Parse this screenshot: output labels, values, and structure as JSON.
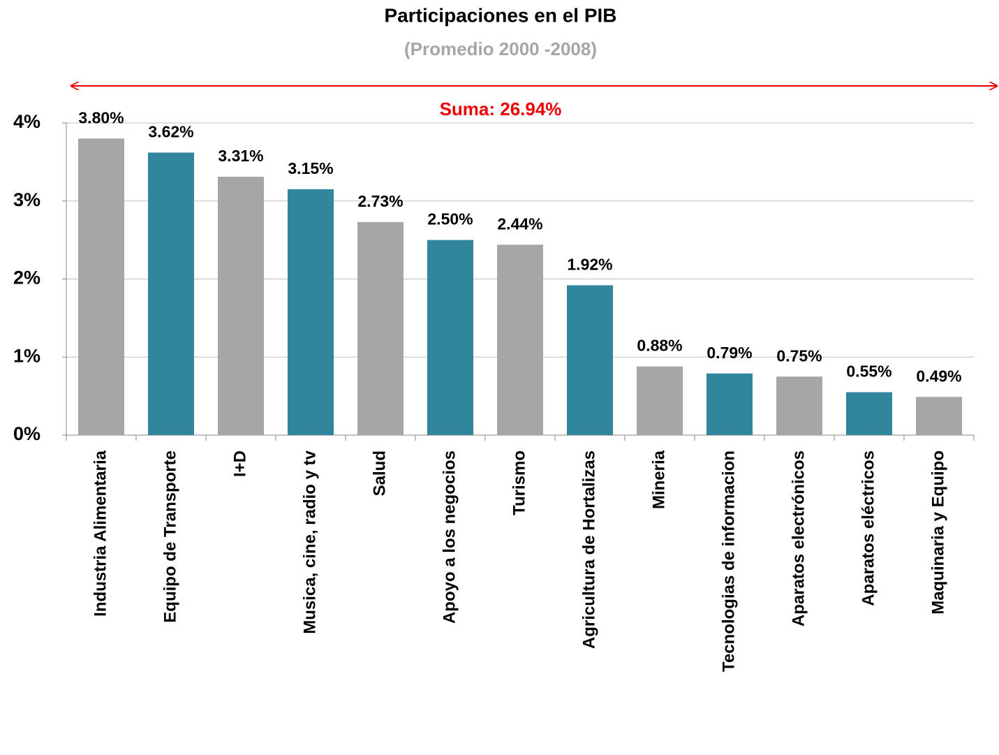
{
  "chart_data": {
    "type": "bar",
    "title": "Participaciones en el PIB",
    "subtitle": "(Promedio 2000 -2008)",
    "annotation": "Suma: 26.94%",
    "categories": [
      "Industria Alimentaria",
      "Equipo de Transporte",
      "I+D",
      "Musica, cine, radio y tv",
      "Salud",
      "Apoyo a los negocios",
      "Turismo",
      "Agricultura de Hortalizas",
      "Mineria",
      "Tecnologias de informacion",
      "Aparatos electrónicos",
      "Aparatos eléctricos",
      "Maquinaria y Equipo"
    ],
    "values": [
      3.8,
      3.62,
      3.31,
      3.15,
      2.73,
      2.5,
      2.44,
      1.92,
      0.88,
      0.79,
      0.75,
      0.55,
      0.49
    ],
    "value_labels": [
      "3.80%",
      "3.62%",
      "3.31%",
      "3.15%",
      "2.73%",
      "2.50%",
      "2.44%",
      "1.92%",
      "0.88%",
      "0.79%",
      "0.75%",
      "0.55%",
      "0.49%"
    ],
    "colors": [
      "#a6a6a6",
      "#31859c",
      "#a6a6a6",
      "#31859c",
      "#a6a6a6",
      "#31859c",
      "#a6a6a6",
      "#31859c",
      "#a6a6a6",
      "#31859c",
      "#a6a6a6",
      "#31859c",
      "#a6a6a6"
    ],
    "ylim": [
      0,
      4
    ],
    "yticks": [
      {
        "value": 0,
        "label": "0%"
      },
      {
        "value": 1,
        "label": "1%"
      },
      {
        "value": 2,
        "label": "2%"
      },
      {
        "value": 3,
        "label": "3%"
      },
      {
        "value": 4,
        "label": "4%"
      }
    ],
    "grid": true
  }
}
